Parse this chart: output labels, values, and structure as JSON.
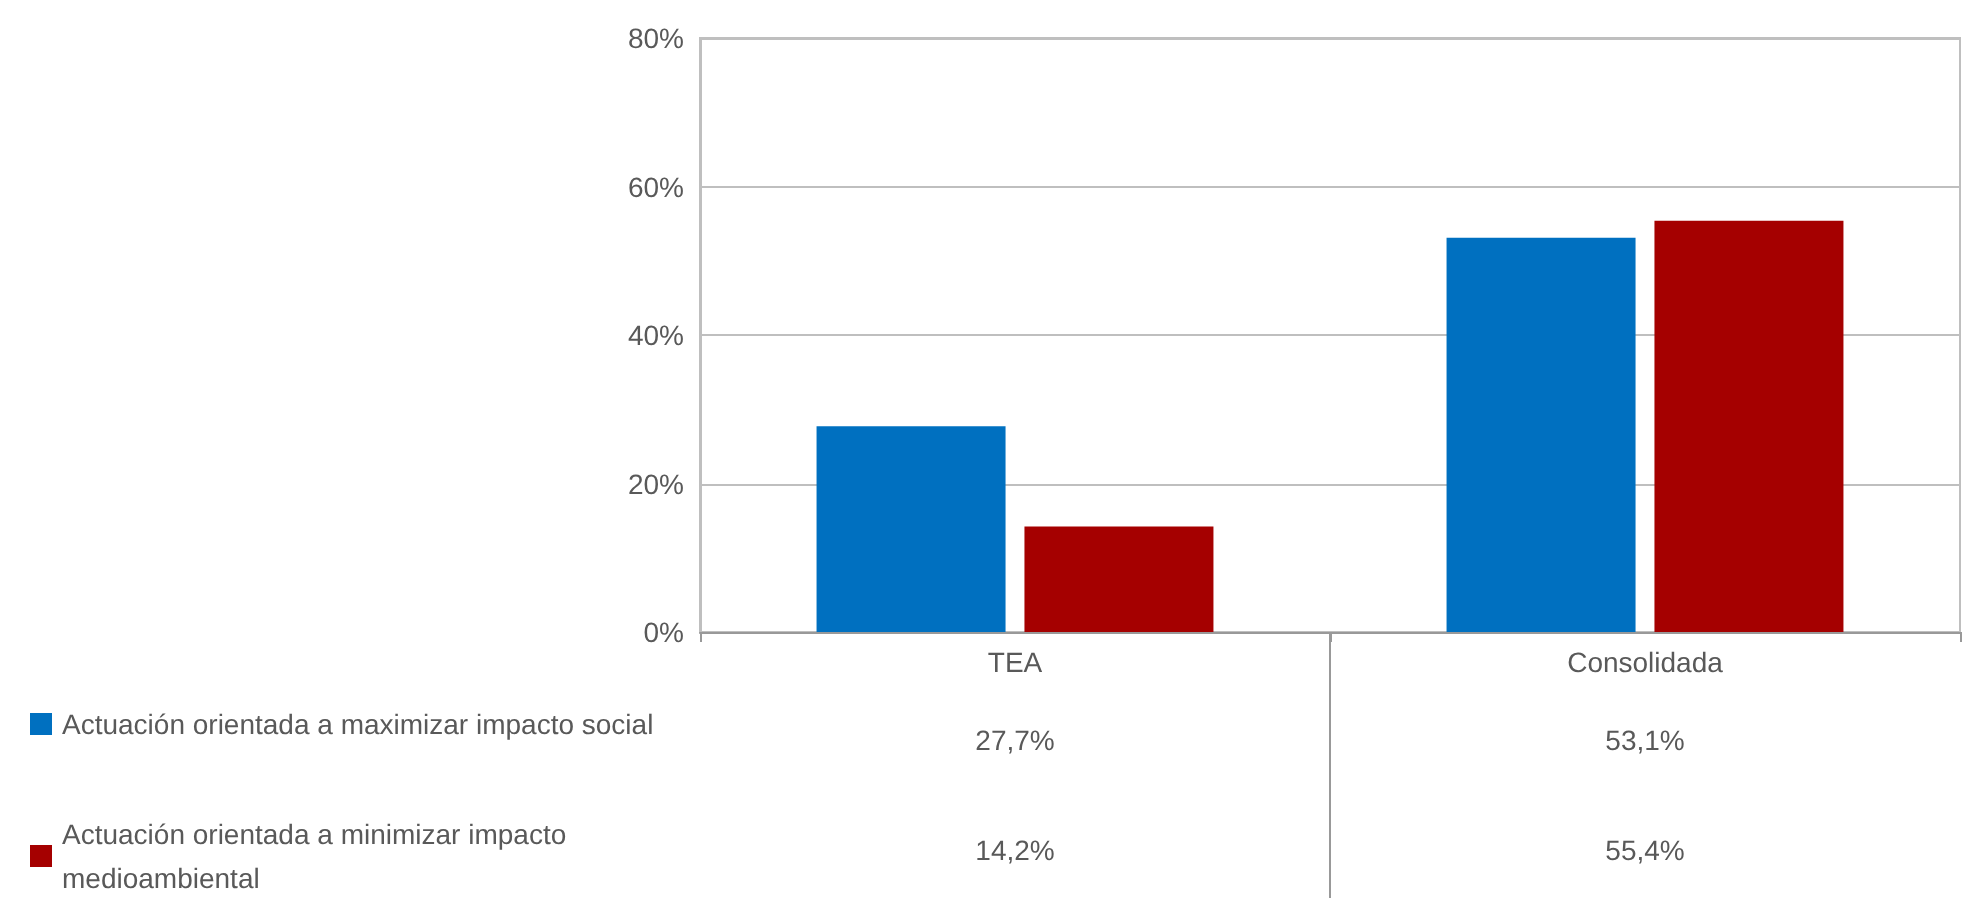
{
  "chart_data": {
    "type": "bar",
    "categories": [
      "TEA",
      "Consolidada"
    ],
    "series": [
      {
        "name": "Actuación orientada a maximizar impacto social",
        "color": "#0070c0",
        "values": [
          27.7,
          53.1
        ],
        "value_labels": [
          "27,7%",
          "53,1%"
        ]
      },
      {
        "name": "Actuación orientada a minimizar impacto medioambiental",
        "color": "#a50000",
        "values": [
          14.2,
          55.4
        ],
        "value_labels": [
          "14,2%",
          "55,4%"
        ]
      }
    ],
    "ylim": [
      0,
      80
    ],
    "yticks": [
      {
        "value": 0,
        "label": "0%"
      },
      {
        "value": 20,
        "label": "20%"
      },
      {
        "value": 40,
        "label": "40%"
      },
      {
        "value": 60,
        "label": "60%"
      },
      {
        "value": 80,
        "label": "80%"
      }
    ],
    "grid": "y",
    "legend": "bottom left"
  }
}
